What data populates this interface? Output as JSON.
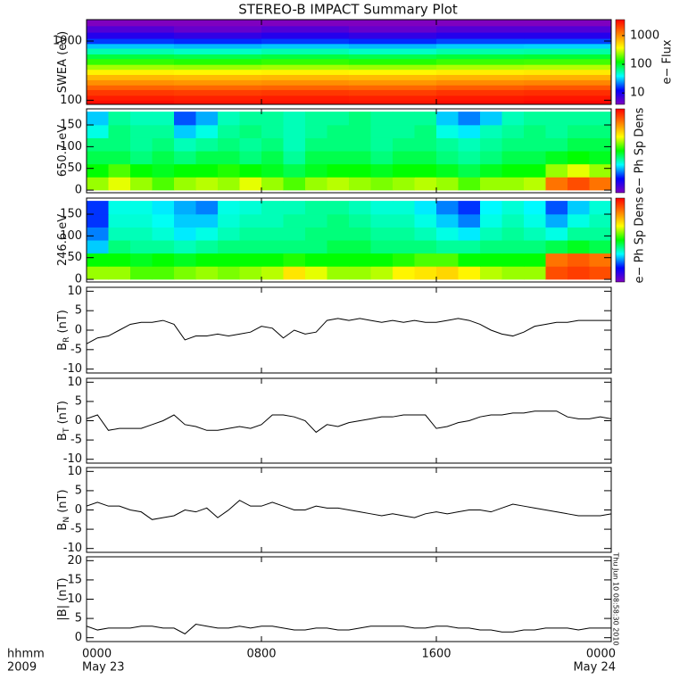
{
  "title": "STEREO-B IMPACT Summary Plot",
  "xlim": [
    0,
    24
  ],
  "xticks": [
    {
      "value": 0,
      "label": "0000"
    },
    {
      "value": 8,
      "label": "0800"
    },
    {
      "value": 16,
      "label": "1600"
    },
    {
      "value": 24,
      "label": "0000"
    }
  ],
  "xtick_dates": [
    "May 23",
    null,
    null,
    "May 24"
  ],
  "x_label_lines": [
    "hhmm",
    "2009"
  ],
  "timestamp": "Thu Jun 10 08:58:30 2010",
  "colormap": [
    "#7f00bf",
    "#0000ff",
    "#00ffff",
    "#00ff00",
    "#ffff00",
    "#ff8000",
    "#ff0000"
  ],
  "chart_data": [
    {
      "type": "heatmap",
      "ylabel": "SWEA (eV)",
      "ylog": true,
      "ylim": [
        85,
        2300
      ],
      "yticks": [
        100,
        1000
      ],
      "zlog": true,
      "zlim": [
        4,
        3600
      ],
      "zticks": [
        10,
        100,
        1000
      ],
      "zlabel": "e− Flux",
      "x_bins": [
        0,
        4,
        8,
        12,
        16,
        20,
        24
      ],
      "y_bins": [
        85,
        100,
        120,
        150,
        180,
        220,
        270,
        330,
        400,
        500,
        600,
        750,
        900,
        1100,
        1400,
        1800,
        2300
      ],
      "z": [
        [
          3200,
          3000,
          3100,
          3000,
          3200,
          3400
        ],
        [
          2800,
          2700,
          2800,
          2700,
          2900,
          3000
        ],
        [
          2200,
          2100,
          2200,
          2100,
          2300,
          2400
        ],
        [
          1500,
          1450,
          1500,
          1450,
          1600,
          1700
        ],
        [
          1000,
          950,
          1000,
          950,
          1050,
          1100
        ],
        [
          700,
          680,
          700,
          680,
          720,
          750
        ],
        [
          420,
          400,
          420,
          400,
          430,
          450
        ],
        [
          250,
          240,
          250,
          240,
          260,
          270
        ],
        [
          150,
          140,
          150,
          140,
          155,
          160
        ],
        [
          90,
          85,
          90,
          85,
          92,
          95
        ],
        [
          55,
          50,
          55,
          50,
          56,
          58
        ],
        [
          30,
          28,
          30,
          28,
          31,
          32
        ],
        [
          16,
          15,
          16,
          15,
          17,
          17
        ],
        [
          9,
          8,
          9,
          8,
          9,
          9
        ],
        [
          6,
          5,
          6,
          5,
          6,
          6
        ],
        [
          4,
          4,
          4,
          4,
          4,
          4
        ]
      ]
    },
    {
      "type": "heatmap",
      "ylabel": "650.7 eV",
      "ylim": [
        -6,
        187
      ],
      "yticks": [
        0,
        50,
        100,
        150
      ],
      "zlim": [
        0,
        1
      ],
      "zlabel": "e− Ph Sp Dens",
      "x_bins": [
        0,
        1,
        2,
        3,
        4,
        5,
        6,
        7,
        8,
        9,
        10,
        11,
        12,
        13,
        14,
        15,
        16,
        17,
        18,
        19,
        20,
        21,
        22,
        23,
        24
      ],
      "y_bins": [
        0,
        30,
        60,
        90,
        120,
        150,
        180
      ],
      "z": [
        [
          0.6,
          0.65,
          0.6,
          0.55,
          0.6,
          0.62,
          0.6,
          0.65,
          0.6,
          0.55,
          0.6,
          0.62,
          0.6,
          0.58,
          0.6,
          0.62,
          0.6,
          0.55,
          0.6,
          0.6,
          0.62,
          0.85,
          0.9,
          0.85
        ],
        [
          0.5,
          0.55,
          0.5,
          0.48,
          0.5,
          0.5,
          0.52,
          0.5,
          0.48,
          0.45,
          0.48,
          0.5,
          0.5,
          0.48,
          0.5,
          0.5,
          0.48,
          0.45,
          0.48,
          0.5,
          0.5,
          0.6,
          0.65,
          0.6
        ],
        [
          0.45,
          0.45,
          0.42,
          0.45,
          0.42,
          0.45,
          0.45,
          0.42,
          0.45,
          0.4,
          0.45,
          0.45,
          0.45,
          0.42,
          0.45,
          0.45,
          0.42,
          0.4,
          0.42,
          0.45,
          0.45,
          0.48,
          0.5,
          0.48
        ],
        [
          0.42,
          0.42,
          0.4,
          0.42,
          0.38,
          0.4,
          0.42,
          0.4,
          0.42,
          0.38,
          0.42,
          0.42,
          0.42,
          0.4,
          0.42,
          0.42,
          0.4,
          0.38,
          0.4,
          0.42,
          0.42,
          0.42,
          0.45,
          0.45
        ],
        [
          0.35,
          0.42,
          0.4,
          0.4,
          0.3,
          0.35,
          0.4,
          0.42,
          0.4,
          0.38,
          0.4,
          0.42,
          0.42,
          0.4,
          0.4,
          0.42,
          0.35,
          0.32,
          0.38,
          0.4,
          0.42,
          0.4,
          0.42,
          0.42
        ],
        [
          0.3,
          0.4,
          0.38,
          0.38,
          0.22,
          0.28,
          0.38,
          0.4,
          0.4,
          0.38,
          0.4,
          0.4,
          0.42,
          0.4,
          0.4,
          0.4,
          0.3,
          0.25,
          0.3,
          0.38,
          0.4,
          0.4,
          0.4,
          0.4
        ]
      ]
    },
    {
      "type": "heatmap",
      "ylabel": "246.6 eV",
      "ylim": [
        -6,
        187
      ],
      "yticks": [
        0,
        50,
        100,
        150
      ],
      "zlim": [
        0,
        1
      ],
      "zlabel": "e− Ph Sp Dens",
      "x_bins": [
        0,
        1,
        2,
        3,
        4,
        5,
        6,
        7,
        8,
        9,
        10,
        11,
        12,
        13,
        14,
        15,
        16,
        17,
        18,
        19,
        20,
        21,
        22,
        23,
        24
      ],
      "y_bins": [
        0,
        30,
        60,
        90,
        120,
        150,
        180
      ],
      "z": [
        [
          0.6,
          0.6,
          0.55,
          0.55,
          0.58,
          0.6,
          0.58,
          0.6,
          0.62,
          0.7,
          0.65,
          0.6,
          0.6,
          0.62,
          0.68,
          0.7,
          0.72,
          0.68,
          0.62,
          0.6,
          0.6,
          0.9,
          0.92,
          0.9
        ],
        [
          0.5,
          0.5,
          0.48,
          0.5,
          0.48,
          0.5,
          0.5,
          0.5,
          0.5,
          0.52,
          0.5,
          0.5,
          0.5,
          0.5,
          0.52,
          0.55,
          0.55,
          0.5,
          0.5,
          0.5,
          0.5,
          0.85,
          0.88,
          0.85
        ],
        [
          0.3,
          0.42,
          0.4,
          0.4,
          0.38,
          0.4,
          0.42,
          0.42,
          0.42,
          0.42,
          0.42,
          0.45,
          0.45,
          0.42,
          0.42,
          0.42,
          0.4,
          0.4,
          0.42,
          0.42,
          0.42,
          0.45,
          0.48,
          0.45
        ],
        [
          0.25,
          0.38,
          0.38,
          0.36,
          0.32,
          0.35,
          0.38,
          0.4,
          0.4,
          0.4,
          0.42,
          0.42,
          0.42,
          0.4,
          0.4,
          0.38,
          0.35,
          0.32,
          0.38,
          0.4,
          0.38,
          0.35,
          0.4,
          0.4
        ],
        [
          0.2,
          0.36,
          0.36,
          0.34,
          0.3,
          0.3,
          0.36,
          0.38,
          0.38,
          0.4,
          0.4,
          0.42,
          0.4,
          0.38,
          0.38,
          0.35,
          0.3,
          0.25,
          0.35,
          0.38,
          0.35,
          0.28,
          0.35,
          0.38
        ],
        [
          0.2,
          0.35,
          0.35,
          0.32,
          0.28,
          0.25,
          0.35,
          0.36,
          0.38,
          0.38,
          0.4,
          0.4,
          0.38,
          0.36,
          0.36,
          0.32,
          0.25,
          0.2,
          0.33,
          0.36,
          0.33,
          0.22,
          0.3,
          0.36
        ]
      ]
    },
    {
      "type": "line",
      "ylabel": "B",
      "ylabel_sub": "R",
      "ylabel_unit": " (nT)",
      "ylim": [
        -11,
        11
      ],
      "yticks": [
        -10,
        -5,
        0,
        5,
        10
      ],
      "color": "#000000",
      "x": [
        0,
        0.5,
        1,
        1.5,
        2,
        2.5,
        3,
        3.5,
        4,
        4.5,
        5,
        5.5,
        6,
        6.5,
        7,
        7.5,
        8,
        8.5,
        9,
        9.5,
        10,
        10.5,
        11,
        11.5,
        12,
        12.5,
        13,
        13.5,
        14,
        14.5,
        15,
        15.5,
        16,
        16.5,
        17,
        17.5,
        18,
        18.5,
        19,
        19.5,
        20,
        20.5,
        21,
        21.5,
        22,
        22.5,
        23,
        23.5,
        24
      ],
      "values": [
        -3.5,
        -2,
        -1.5,
        0,
        1.5,
        2,
        2,
        2.5,
        1.5,
        -2.5,
        -1.5,
        -1.5,
        -1,
        -1.5,
        -1,
        -0.5,
        1,
        0.5,
        -2,
        0,
        -1,
        -0.5,
        2.5,
        3,
        2.5,
        3,
        2.5,
        2,
        2.5,
        2,
        2.5,
        2,
        2,
        2.5,
        3,
        2.5,
        1.5,
        0,
        -1,
        -1.5,
        -0.5,
        1,
        1.5,
        2,
        2,
        2.5,
        2.5,
        2.5,
        2.5
      ]
    },
    {
      "type": "line",
      "ylabel": "B",
      "ylabel_sub": "T",
      "ylabel_unit": " (nT)",
      "ylim": [
        -11,
        11
      ],
      "yticks": [
        -10,
        -5,
        0,
        5,
        10
      ],
      "color": "#000000",
      "x": [
        0,
        0.5,
        1,
        1.5,
        2,
        2.5,
        3,
        3.5,
        4,
        4.5,
        5,
        5.5,
        6,
        6.5,
        7,
        7.5,
        8,
        8.5,
        9,
        9.5,
        10,
        10.5,
        11,
        11.5,
        12,
        12.5,
        13,
        13.5,
        14,
        14.5,
        15,
        15.5,
        16,
        16.5,
        17,
        17.5,
        18,
        18.5,
        19,
        19.5,
        20,
        20.5,
        21,
        21.5,
        22,
        22.5,
        23,
        23.5,
        24
      ],
      "values": [
        0.5,
        1.5,
        -2.5,
        -2,
        -2,
        -2,
        -1,
        0,
        1.5,
        -1,
        -1.5,
        -2.5,
        -2.5,
        -2,
        -1.5,
        -2,
        -1,
        1.5,
        1.5,
        1,
        0,
        -3,
        -1,
        -1.5,
        -0.5,
        0,
        0.5,
        1,
        1,
        1.5,
        1.5,
        1.5,
        -2,
        -1.5,
        -0.5,
        0,
        1,
        1.5,
        1.5,
        2,
        2,
        2.5,
        2.5,
        2.5,
        1,
        0.5,
        0.5,
        1,
        0.5
      ]
    },
    {
      "type": "line",
      "ylabel": "B",
      "ylabel_sub": "N",
      "ylabel_unit": " (nT)",
      "ylim": [
        -11,
        11
      ],
      "yticks": [
        -10,
        -5,
        0,
        5,
        10
      ],
      "color": "#000000",
      "x": [
        0,
        0.5,
        1,
        1.5,
        2,
        2.5,
        3,
        3.5,
        4,
        4.5,
        5,
        5.5,
        6,
        6.5,
        7,
        7.5,
        8,
        8.5,
        9,
        9.5,
        10,
        10.5,
        11,
        11.5,
        12,
        12.5,
        13,
        13.5,
        14,
        14.5,
        15,
        15.5,
        16,
        16.5,
        17,
        17.5,
        18,
        18.5,
        19,
        19.5,
        20,
        20.5,
        21,
        21.5,
        22,
        22.5,
        23,
        23.5,
        24
      ],
      "values": [
        1,
        2,
        1,
        1,
        0,
        -0.5,
        -2.5,
        -2,
        -1.5,
        0,
        -0.5,
        0.5,
        -2,
        0,
        2.5,
        1,
        1,
        2,
        1,
        0,
        0,
        1,
        0.5,
        0.5,
        0,
        -0.5,
        -1,
        -1.5,
        -1,
        -1.5,
        -2,
        -1,
        -0.5,
        -1,
        -0.5,
        0,
        0,
        -0.5,
        0.5,
        1.5,
        1,
        0.5,
        0,
        -0.5,
        -1,
        -1.5,
        -1.5,
        -1.5,
        -1
      ]
    },
    {
      "type": "line",
      "ylabel": "|B| (nT)",
      "ylim": [
        -1,
        21
      ],
      "yticks": [
        0,
        5,
        10,
        15,
        20
      ],
      "color": "#000000",
      "x": [
        0,
        0.5,
        1,
        1.5,
        2,
        2.5,
        3,
        3.5,
        4,
        4.5,
        5,
        5.5,
        6,
        6.5,
        7,
        7.5,
        8,
        8.5,
        9,
        9.5,
        10,
        10.5,
        11,
        11.5,
        12,
        12.5,
        13,
        13.5,
        14,
        14.5,
        15,
        15.5,
        16,
        16.5,
        17,
        17.5,
        18,
        18.5,
        19,
        19.5,
        20,
        20.5,
        21,
        21.5,
        22,
        22.5,
        23,
        23.5,
        24
      ],
      "values": [
        3,
        2,
        2.5,
        2.5,
        2.5,
        3,
        3,
        2.5,
        2.5,
        1,
        3.5,
        3,
        2.5,
        2.5,
        3,
        2.5,
        3,
        3,
        2.5,
        2,
        2,
        2.5,
        2.5,
        2,
        2,
        2.5,
        3,
        3,
        3,
        3,
        2.5,
        2.5,
        3,
        3,
        2.5,
        2.5,
        2,
        2,
        1.5,
        1.5,
        2,
        2,
        2.5,
        2.5,
        2.5,
        2,
        2.5,
        2.5,
        2.5
      ]
    }
  ]
}
